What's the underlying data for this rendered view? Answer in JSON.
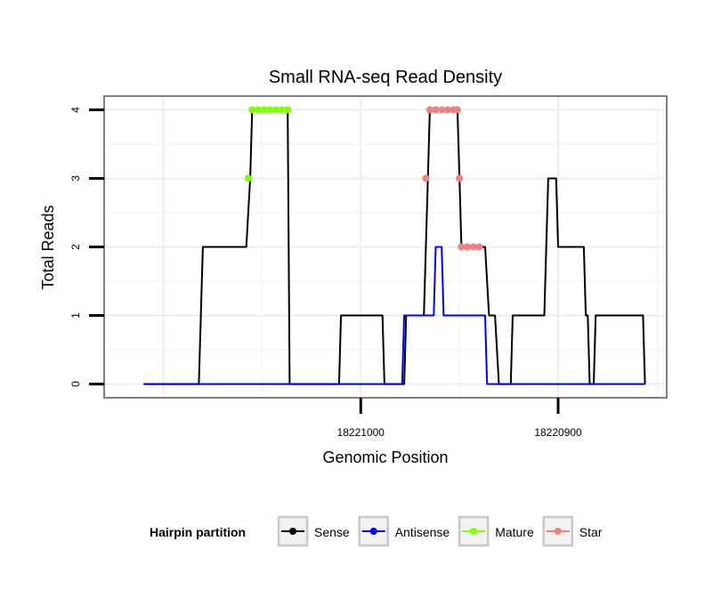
{
  "chart_data": {
    "type": "line",
    "title": "Small RNA-seq Read Density",
    "xlabel": "Genomic Position",
    "ylabel": "Total Reads",
    "xlim": [
      18221130,
      18220845
    ],
    "ylim": [
      -0.2,
      4.2
    ],
    "x_reversed": true,
    "x_ticks": [
      18221000,
      18220900
    ],
    "x_tick_labels": [
      "18221000",
      "18220900"
    ],
    "y_ticks": [
      0,
      1,
      2,
      3,
      4
    ],
    "y_tick_labels": [
      "0",
      "1",
      "2",
      "3",
      "4"
    ],
    "grid": true,
    "legend": {
      "title": "Hairpin partition",
      "position": "bottom",
      "entries": [
        "Sense",
        "Antisense",
        "Mature",
        "Star"
      ]
    },
    "series": [
      {
        "name": "Sense",
        "color": "#000000",
        "style": "line",
        "points": [
          [
            18221110,
            0
          ],
          [
            18221082,
            0
          ],
          [
            18221080,
            2
          ],
          [
            18221058,
            2
          ],
          [
            18221056,
            3
          ],
          [
            18221055,
            4
          ],
          [
            18221037,
            4
          ],
          [
            18221036,
            0
          ],
          [
            18221011,
            0
          ],
          [
            18221010,
            1
          ],
          [
            18220989,
            1
          ],
          [
            18220988,
            0
          ],
          [
            18220978,
            0
          ],
          [
            18220977,
            1
          ],
          [
            18220968,
            1
          ],
          [
            18220966,
            3
          ],
          [
            18220965,
            4
          ],
          [
            18220951,
            4
          ],
          [
            18220950,
            3
          ],
          [
            18220949,
            2
          ],
          [
            18220937,
            2
          ],
          [
            18220935,
            1
          ],
          [
            18220932,
            1
          ],
          [
            18220930,
            0
          ],
          [
            18220924,
            0
          ],
          [
            18220923,
            1
          ],
          [
            18220907,
            1
          ],
          [
            18220906,
            2
          ],
          [
            18220905,
            3
          ],
          [
            18220901,
            3
          ],
          [
            18220900,
            2
          ],
          [
            18220887,
            2
          ],
          [
            18220886,
            1
          ],
          [
            18220885,
            1
          ],
          [
            18220884,
            0
          ],
          [
            18220882,
            0
          ],
          [
            18220881,
            1
          ],
          [
            18220857,
            1
          ],
          [
            18220856,
            0
          ]
        ]
      },
      {
        "name": "Antisense",
        "color": "#0000ff",
        "style": "line",
        "points": [
          [
            18221110,
            0
          ],
          [
            18220979,
            0
          ],
          [
            18220978,
            1
          ],
          [
            18220963,
            1
          ],
          [
            18220962,
            2
          ],
          [
            18220959,
            2
          ],
          [
            18220958,
            1
          ],
          [
            18220937,
            1
          ],
          [
            18220936,
            0
          ],
          [
            18220856,
            0
          ]
        ]
      },
      {
        "name": "Mature",
        "color": "#7fff00",
        "style": "points",
        "points": [
          [
            18221057,
            3
          ],
          [
            18221055,
            4
          ],
          [
            18221052,
            4
          ],
          [
            18221049,
            4
          ],
          [
            18221046,
            4
          ],
          [
            18221043,
            4
          ],
          [
            18221040,
            4
          ],
          [
            18221037,
            4
          ]
        ]
      },
      {
        "name": "Star",
        "color": "#f08080",
        "style": "points",
        "points": [
          [
            18220967,
            3
          ],
          [
            18220965,
            4
          ],
          [
            18220962,
            4
          ],
          [
            18220959,
            4
          ],
          [
            18220956,
            4
          ],
          [
            18220953,
            4
          ],
          [
            18220951,
            4
          ],
          [
            18220950,
            3
          ],
          [
            18220949,
            2
          ],
          [
            18220946,
            2
          ],
          [
            18220943,
            2
          ],
          [
            18220940,
            2
          ]
        ]
      }
    ]
  }
}
